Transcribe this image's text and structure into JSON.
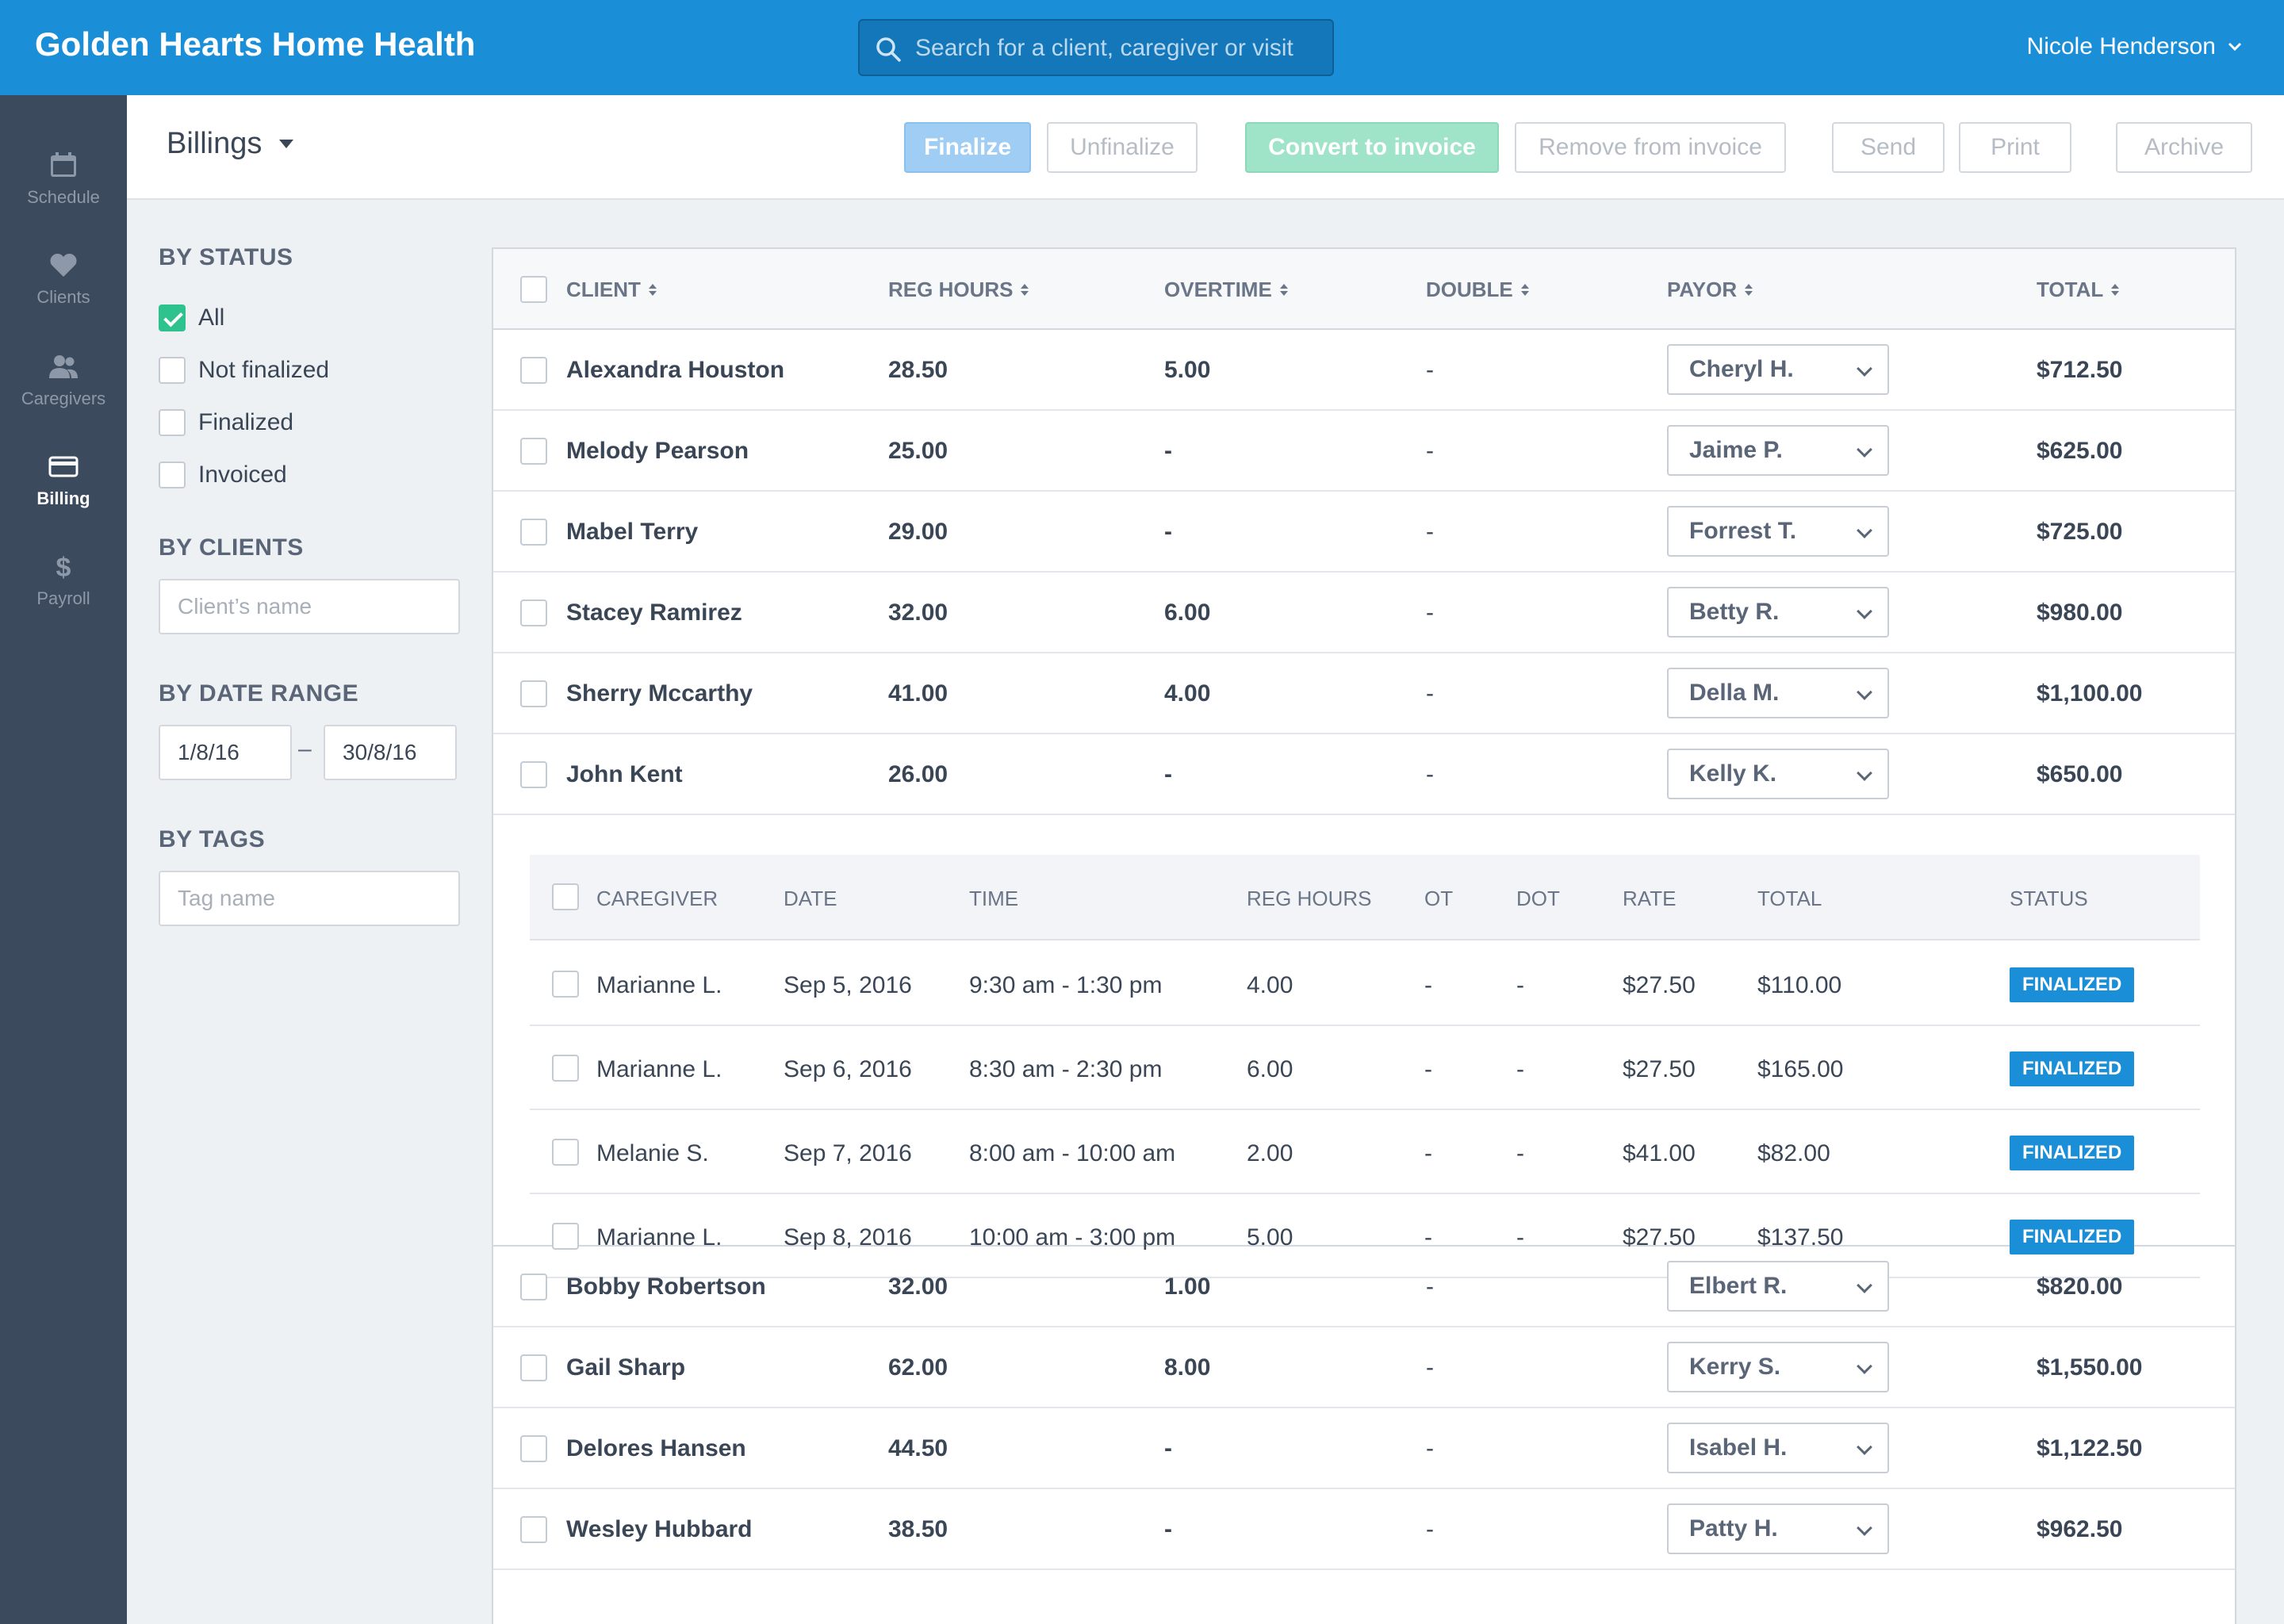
{
  "app": {
    "title": "Golden Hearts Home Health",
    "search_placeholder": "Search for a client, caregiver or visit",
    "user_name": "Nicole Henderson"
  },
  "nav": {
    "items": [
      {
        "label": "Schedule",
        "icon": "calendar-icon",
        "active": false
      },
      {
        "label": "Clients",
        "icon": "heart-icon",
        "active": false
      },
      {
        "label": "Caregivers",
        "icon": "users-icon",
        "active": false
      },
      {
        "label": "Billing",
        "icon": "credit-card-icon",
        "active": true
      },
      {
        "label": "Payroll",
        "icon": "dollar-icon",
        "active": false
      }
    ]
  },
  "page": {
    "title": "Billings"
  },
  "toolbar": {
    "finalize": "Finalize",
    "unfinalize": "Unfinalize",
    "convert": "Convert to invoice",
    "remove": "Remove from invoice",
    "send": "Send",
    "print": "Print",
    "archive": "Archive"
  },
  "filters": {
    "status_heading": "BY STATUS",
    "status_options": [
      {
        "label": "All",
        "checked": true
      },
      {
        "label": "Not finalized",
        "checked": false
      },
      {
        "label": "Finalized",
        "checked": false
      },
      {
        "label": "Invoiced",
        "checked": false
      }
    ],
    "clients_heading": "BY CLIENTS",
    "clients_placeholder": "Client’s name",
    "date_heading": "BY DATE RANGE",
    "date_from": "1/8/16",
    "date_separator": "–",
    "date_to": "30/8/16",
    "tags_heading": "BY TAGS",
    "tags_placeholder": "Tag name"
  },
  "table": {
    "headers": {
      "client": "CLIENT",
      "reg_hours": "REG HOURS",
      "overtime": "OVERTIME",
      "double": "DOUBLE",
      "payor": "PAYOR",
      "total": "TOTAL"
    },
    "rows_top": [
      {
        "client": "Alexandra Houston",
        "reg": "28.50",
        "ot": "5.00",
        "dbl": "-",
        "payor": "Cheryl H.",
        "total": "$712.50"
      },
      {
        "client": "Melody Pearson",
        "reg": "25.00",
        "ot": "-",
        "dbl": "-",
        "payor": "Jaime P.",
        "total": "$625.00"
      },
      {
        "client": "Mabel Terry",
        "reg": "29.00",
        "ot": "-",
        "dbl": "-",
        "payor": "Forrest T.",
        "total": "$725.00"
      },
      {
        "client": "Stacey Ramirez",
        "reg": "32.00",
        "ot": "6.00",
        "dbl": "-",
        "payor": "Betty R.",
        "total": "$980.00"
      },
      {
        "client": "Sherry Mccarthy",
        "reg": "41.00",
        "ot": "4.00",
        "dbl": "-",
        "payor": "Della M.",
        "total": "$1,100.00"
      },
      {
        "client": "John Kent",
        "reg": "26.00",
        "ot": "-",
        "dbl": "-",
        "payor": "Kelly K.",
        "total": "$650.00"
      }
    ],
    "rows_bottom": [
      {
        "client": "Bobby Robertson",
        "reg": "32.00",
        "ot": "1.00",
        "dbl": "-",
        "payor": "Elbert R.",
        "total": "$820.00"
      },
      {
        "client": "Gail Sharp",
        "reg": "62.00",
        "ot": "8.00",
        "dbl": "-",
        "payor": "Kerry S.",
        "total": "$1,550.00"
      },
      {
        "client": "Delores Hansen",
        "reg": "44.50",
        "ot": "-",
        "dbl": "-",
        "payor": "Isabel H.",
        "total": "$1,122.50"
      },
      {
        "client": "Wesley Hubbard",
        "reg": "38.50",
        "ot": "-",
        "dbl": "-",
        "payor": "Patty H.",
        "total": "$962.50"
      }
    ]
  },
  "visits": {
    "headers": {
      "caregiver": "CAREGIVER",
      "date": "DATE",
      "time": "TIME",
      "reg_hours": "REG HOURS",
      "ot": "OT",
      "dot": "DOT",
      "rate": "RATE",
      "total": "TOTAL",
      "status": "STATUS"
    },
    "rows": [
      {
        "caregiver": "Marianne L.",
        "date": "Sep 5, 2016",
        "time": "9:30 am - 1:30 pm",
        "reg": "4.00",
        "ot": "-",
        "dot": "-",
        "rate": "$27.50",
        "total": "$110.00",
        "status": "FINALIZED"
      },
      {
        "caregiver": "Marianne L.",
        "date": "Sep 6, 2016",
        "time": "8:30 am - 2:30 pm",
        "reg": "6.00",
        "ot": "-",
        "dot": "-",
        "rate": "$27.50",
        "total": "$165.00",
        "status": "FINALIZED"
      },
      {
        "caregiver": "Melanie S.",
        "date": "Sep 7, 2016",
        "time": "8:00 am - 10:00 am",
        "reg": "2.00",
        "ot": "-",
        "dot": "-",
        "rate": "$41.00",
        "total": "$82.00",
        "status": "FINALIZED"
      },
      {
        "caregiver": "Marianne L.",
        "date": "Sep 8, 2016",
        "time": "10:00 am - 3:00 pm",
        "reg": "5.00",
        "ot": "-",
        "dot": "-",
        "rate": "$27.50",
        "total": "$137.50",
        "status": "FINALIZED"
      }
    ]
  },
  "colors": {
    "brand": "#1b8ed8",
    "sidebar": "#3c4a5e",
    "success": "#2ec28e",
    "badge": "#1b8ed8"
  }
}
